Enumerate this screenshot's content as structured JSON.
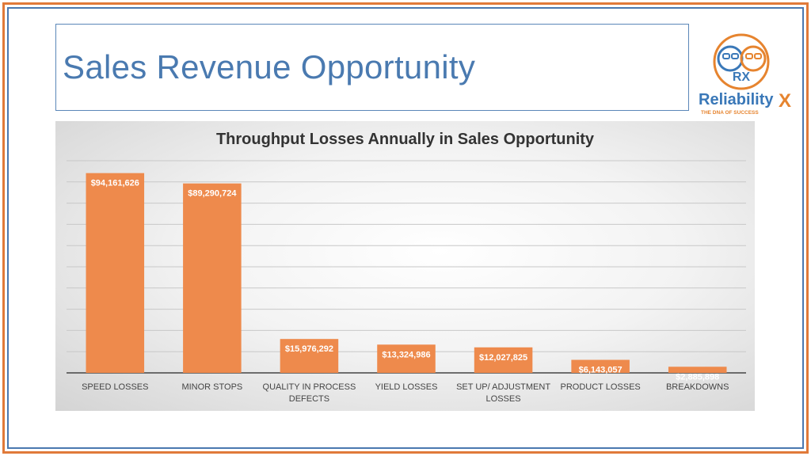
{
  "slide": {
    "title": "Sales Revenue Opportunity"
  },
  "logo": {
    "brand_main": "Reliability",
    "brand_x": "X",
    "tagline": "THE DNA OF SUCCESS",
    "monogram": "RX"
  },
  "colors": {
    "bar": "#ee8a4c",
    "frame_orange": "#e07a3a",
    "frame_blue": "#4a78b0",
    "title_blue": "#4a7ab0"
  },
  "chart_data": {
    "type": "bar",
    "title": "Throughput Losses Annually in Sales Opportunity",
    "categories": [
      "SPEED LOSSES",
      "MINOR STOPS",
      "QUALITY IN PROCESS DEFECTS",
      "YIELD LOSSES",
      "SET UP/ ADJUSTMENT LOSSES",
      "PRODUCT LOSSES",
      "BREAKDOWNS"
    ],
    "category_lines": [
      [
        "SPEED LOSSES"
      ],
      [
        "MINOR STOPS"
      ],
      [
        "QUALITY IN PROCESS",
        "DEFECTS"
      ],
      [
        "YIELD LOSSES"
      ],
      [
        "SET UP/ ADJUSTMENT",
        "LOSSES"
      ],
      [
        "PRODUCT LOSSES"
      ],
      [
        "BREAKDOWNS"
      ]
    ],
    "values": [
      94161626,
      89290724,
      15976292,
      13324986,
      12027825,
      6143057,
      2885898
    ],
    "data_labels": [
      "$94,161,626",
      "$89,290,724",
      "$15,976,292",
      "$13,324,986",
      "$12,027,825",
      "$6,143,057",
      "$2,885,898"
    ],
    "ylim": [
      0,
      100000000
    ],
    "grid": true,
    "gridline_step": 10000000,
    "axis_labels_shown": false,
    "legend": "none"
  }
}
